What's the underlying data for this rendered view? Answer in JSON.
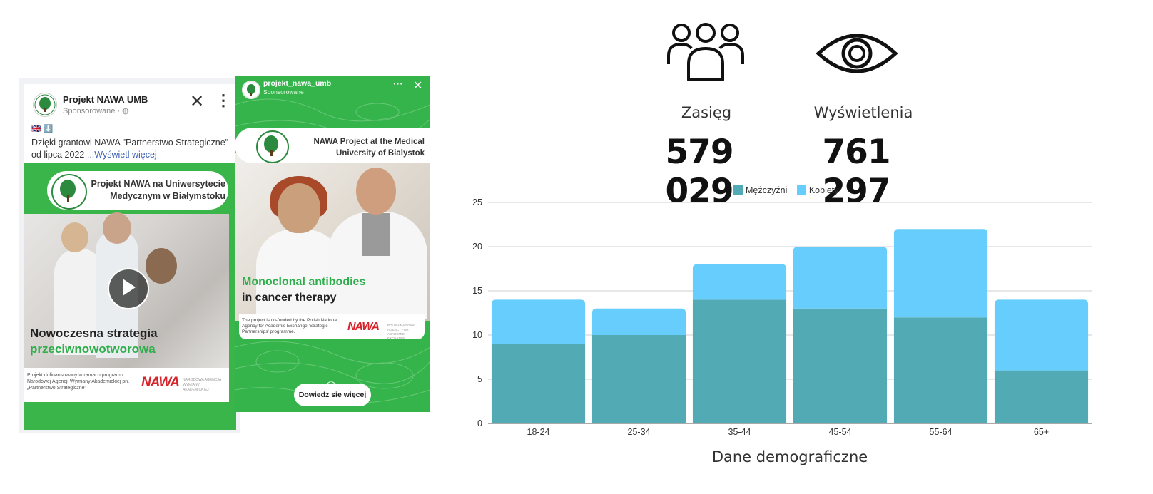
{
  "facebook_ad": {
    "page_name": "Projekt NAWA UMB",
    "sponsored": "Sponsorowane · ",
    "flags": "🇬🇧 ⬇️",
    "body": "Dzięki grantowi NAWA \"Partnerstwo Strategiczne\" od lipca 2022",
    "see_more": "...Wyświetl więcej",
    "banner_title": "Projekt NAWA na Uniwersytecie Medycznym w Białymstoku",
    "headline_line1": "Nowoczesna strategia",
    "headline_line2": "przeciwnowotworowa",
    "footer_text": "Projekt dofinansowany w ramach programu Narodowej Agencji Wymiany Akademickiej pn. „Partnerstwo Strategiczne\"",
    "nawa_logo": "NAWA",
    "nawa_subtext": "NARODOWA AGENCJA WYMIANY AKADEMICKIEJ"
  },
  "instagram_story": {
    "account": "projekt_nawa_umb",
    "sponsored": "Sponsorowane",
    "banner_title": "NAWA Project at the Medical University of Bialystok",
    "headline_line1": "Monoclonal antibodies",
    "headline_line2": "in cancer therapy",
    "footer_text": "The project is co-funded by the Polish National Agency for Academic Exchange 'Strategic Partnerships' programme.",
    "nawa_logo": "NAWA",
    "nawa_subtext": "POLISH NATIONAL AGENCY FOR ACADEMIC EXCHANGE",
    "cta_label": "Dowiedz się więcej"
  },
  "stats": {
    "reach": {
      "icon": "people-icon",
      "label": "Zasięg",
      "value": "579 029"
    },
    "views": {
      "icon": "eye-icon",
      "label": "Wyświetlenia",
      "value": "761 297"
    }
  },
  "colors": {
    "men": "#52abb4",
    "women": "#66cdfc",
    "nawa_green": "#34b44a",
    "nawa_red": "#d8232a"
  },
  "chart_data": {
    "type": "bar",
    "stacked": true,
    "categories": [
      "18-24",
      "25-34",
      "35-44",
      "45-54",
      "55-64",
      "65+"
    ],
    "series": [
      {
        "name": "Mężczyźni",
        "values": [
          9,
          10,
          14,
          13,
          12,
          6
        ]
      },
      {
        "name": "Kobiety",
        "values": [
          5,
          3,
          4,
          7,
          10,
          8
        ]
      }
    ],
    "xlabel": "Dane demograficzne",
    "ylabel": "",
    "ylim": [
      0,
      25
    ],
    "yticks": [
      0,
      5,
      10,
      15,
      20,
      25
    ],
    "grid": true,
    "legend": "top-center"
  }
}
